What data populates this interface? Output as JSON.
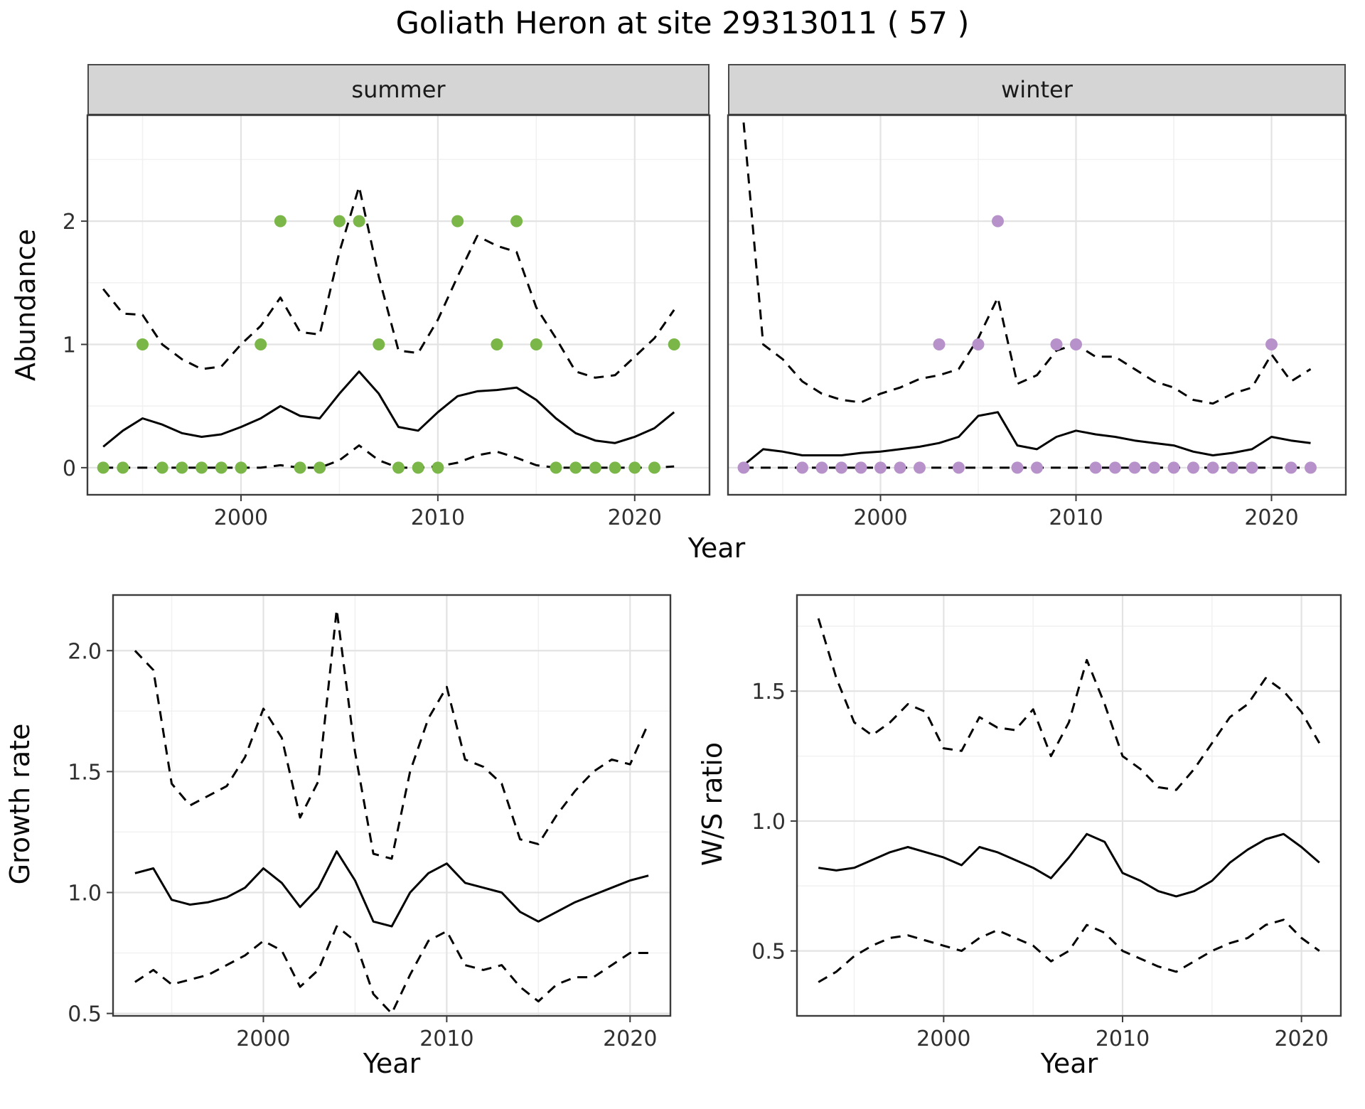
{
  "title": "Goliath Heron at site 29313011 ( 57 )",
  "facets": [
    "summer",
    "winter"
  ],
  "labels": {
    "x": "Year",
    "abundance": "Abundance",
    "growth": "Growth rate",
    "ws": "W/S ratio"
  },
  "colors": {
    "summer_points": "#7ab648",
    "winter_points": "#b791c9",
    "line": "#000000",
    "strip_bg": "#d5d5d5",
    "grid_major": "#e3e3e3",
    "grid_minor": "#f1f1f1",
    "panel_border": "#3c3c3c"
  },
  "chart_data": [
    {
      "id": "summer",
      "type": "line",
      "title": "summer",
      "xlabel": "Year",
      "ylabel": "Abundance",
      "xlim": [
        1992.2,
        2023.8
      ],
      "ylim": [
        -0.22,
        2.86
      ],
      "xticks": [
        2000,
        2010,
        2020
      ],
      "xtick_labels": [
        "2000",
        "2010",
        "2020"
      ],
      "yticks": [
        0,
        1,
        2
      ],
      "ytick_labels": [
        "0",
        "1",
        "2"
      ],
      "series": [
        {
          "name": "mean",
          "style": "solid",
          "x": [
            1993,
            1994,
            1995,
            1996,
            1997,
            1998,
            1999,
            2000,
            2001,
            2002,
            2003,
            2004,
            2005,
            2006,
            2007,
            2008,
            2009,
            2010,
            2011,
            2012,
            2013,
            2014,
            2015,
            2016,
            2017,
            2018,
            2019,
            2020,
            2021,
            2022
          ],
          "y": [
            0.17,
            0.3,
            0.4,
            0.35,
            0.28,
            0.25,
            0.27,
            0.33,
            0.4,
            0.5,
            0.42,
            0.4,
            0.6,
            0.78,
            0.6,
            0.33,
            0.3,
            0.45,
            0.58,
            0.62,
            0.63,
            0.65,
            0.55,
            0.4,
            0.28,
            0.22,
            0.2,
            0.25,
            0.32,
            0.45
          ]
        },
        {
          "name": "upper_ci",
          "style": "dashed",
          "x": [
            1993,
            1994,
            1995,
            1996,
            1997,
            1998,
            1999,
            2000,
            2001,
            2002,
            2003,
            2004,
            2005,
            2006,
            2007,
            2008,
            2009,
            2010,
            2011,
            2012,
            2013,
            2014,
            2015,
            2016,
            2017,
            2018,
            2019,
            2020,
            2021,
            2022
          ],
          "y": [
            1.45,
            1.25,
            1.24,
            1.0,
            0.88,
            0.8,
            0.82,
            1.0,
            1.15,
            1.38,
            1.1,
            1.08,
            1.75,
            2.28,
            1.55,
            0.95,
            0.93,
            1.2,
            1.55,
            1.88,
            1.8,
            1.75,
            1.3,
            1.05,
            0.78,
            0.73,
            0.75,
            0.9,
            1.05,
            1.28
          ]
        },
        {
          "name": "lower_ci",
          "style": "dashed",
          "x": [
            1993,
            1994,
            1995,
            1996,
            1997,
            1998,
            1999,
            2000,
            2001,
            2002,
            2003,
            2004,
            2005,
            2006,
            2007,
            2008,
            2009,
            2010,
            2011,
            2012,
            2013,
            2014,
            2015,
            2016,
            2017,
            2018,
            2019,
            2020,
            2021,
            2022
          ],
          "y": [
            0,
            0,
            0,
            0,
            0,
            0,
            0,
            0,
            0,
            0.02,
            0,
            0,
            0.06,
            0.18,
            0.06,
            0,
            0,
            0.01,
            0.04,
            0.1,
            0.13,
            0.08,
            0.02,
            0,
            0,
            0,
            0,
            0,
            0,
            0.01
          ]
        }
      ],
      "points": {
        "name": "summer-observed-counts",
        "color": "#7ab648",
        "x": [
          1993,
          1994,
          1996,
          1997,
          1998,
          1999,
          2000,
          2003,
          2004,
          2008,
          2009,
          2010,
          2016,
          2017,
          2018,
          2019,
          2020,
          2021,
          1995,
          2001,
          2007,
          2013,
          2015,
          2022,
          2002,
          2005,
          2006,
          2011,
          2014
        ],
        "y": [
          0,
          0,
          0,
          0,
          0,
          0,
          0,
          0,
          0,
          0,
          0,
          0,
          0,
          0,
          0,
          0,
          0,
          0,
          1,
          1,
          1,
          1,
          1,
          1,
          2,
          2,
          2,
          2,
          2
        ]
      }
    },
    {
      "id": "winter",
      "type": "line",
      "title": "winter",
      "xlabel": "Year",
      "ylabel": "Abundance",
      "xlim": [
        1992.2,
        2023.8
      ],
      "ylim": [
        -0.22,
        2.86
      ],
      "xticks": [
        2000,
        2010,
        2020
      ],
      "xtick_labels": [
        "2000",
        "2010",
        "2020"
      ],
      "yticks": [
        0,
        1,
        2
      ],
      "ytick_labels": [
        "0",
        "1",
        "2"
      ],
      "series": [
        {
          "name": "mean",
          "style": "solid",
          "x": [
            1993,
            1994,
            1995,
            1996,
            1997,
            1998,
            1999,
            2000,
            2001,
            2002,
            2003,
            2004,
            2005,
            2006,
            2007,
            2008,
            2009,
            2010,
            2011,
            2012,
            2013,
            2014,
            2015,
            2016,
            2017,
            2018,
            2019,
            2020,
            2021,
            2022
          ],
          "y": [
            0.02,
            0.15,
            0.13,
            0.1,
            0.1,
            0.1,
            0.12,
            0.13,
            0.15,
            0.17,
            0.2,
            0.25,
            0.42,
            0.45,
            0.18,
            0.15,
            0.25,
            0.3,
            0.27,
            0.25,
            0.22,
            0.2,
            0.18,
            0.13,
            0.1,
            0.12,
            0.15,
            0.25,
            0.22,
            0.2
          ]
        },
        {
          "name": "upper_ci",
          "style": "dashed",
          "x": [
            1993,
            1994,
            1995,
            1996,
            1997,
            1998,
            1999,
            2000,
            2001,
            2002,
            2003,
            2004,
            2005,
            2006,
            2007,
            2008,
            2009,
            2010,
            2011,
            2012,
            2013,
            2014,
            2015,
            2016,
            2017,
            2018,
            2019,
            2020,
            2021,
            2022
          ],
          "y": [
            2.8,
            1.0,
            0.88,
            0.7,
            0.6,
            0.55,
            0.53,
            0.6,
            0.65,
            0.72,
            0.75,
            0.8,
            1.05,
            1.38,
            0.68,
            0.75,
            0.95,
            1.0,
            0.9,
            0.9,
            0.8,
            0.7,
            0.65,
            0.55,
            0.52,
            0.6,
            0.65,
            0.92,
            0.7,
            0.8
          ]
        },
        {
          "name": "lower_ci",
          "style": "dashed",
          "x": [
            1993,
            1994,
            1995,
            1996,
            1997,
            1998,
            1999,
            2000,
            2001,
            2002,
            2003,
            2004,
            2005,
            2006,
            2007,
            2008,
            2009,
            2010,
            2011,
            2012,
            2013,
            2014,
            2015,
            2016,
            2017,
            2018,
            2019,
            2020,
            2021,
            2022
          ],
          "y": [
            0,
            0,
            0,
            0,
            0,
            0,
            0,
            0,
            0,
            0,
            0,
            0,
            0,
            0,
            0,
            0,
            0,
            0,
            0,
            0,
            0,
            0,
            0,
            0,
            0,
            0,
            0,
            0,
            0,
            0
          ]
        }
      ],
      "points": {
        "name": "winter-observed-counts",
        "color": "#b791c9",
        "x": [
          1993,
          1996,
          1997,
          1998,
          1999,
          2000,
          2001,
          2002,
          2004,
          2007,
          2008,
          2011,
          2012,
          2013,
          2014,
          2015,
          2016,
          2017,
          2018,
          2019,
          2021,
          2022,
          2003,
          2005,
          2009,
          2010,
          2020,
          2006
        ],
        "y": [
          0,
          0,
          0,
          0,
          0,
          0,
          0,
          0,
          0,
          0,
          0,
          0,
          0,
          0,
          0,
          0,
          0,
          0,
          0,
          0,
          0,
          0,
          1,
          1,
          1,
          1,
          1,
          2
        ]
      }
    },
    {
      "id": "growth",
      "type": "line",
      "title": "Growth rate",
      "xlabel": "Year",
      "ylabel": "Growth rate",
      "xlim": [
        1991.8,
        2022.2
      ],
      "ylim": [
        0.49,
        2.23
      ],
      "xticks": [
        2000,
        2010,
        2020
      ],
      "xtick_labels": [
        "2000",
        "2010",
        "2020"
      ],
      "yticks": [
        0.5,
        1.0,
        1.5,
        2.0
      ],
      "ytick_labels": [
        "0.5",
        "1.0",
        "1.5",
        "2.0"
      ],
      "series": [
        {
          "name": "mean",
          "style": "solid",
          "x": [
            1993,
            1994,
            1995,
            1996,
            1997,
            1998,
            1999,
            2000,
            2001,
            2002,
            2003,
            2004,
            2005,
            2006,
            2007,
            2008,
            2009,
            2010,
            2011,
            2012,
            2013,
            2014,
            2015,
            2016,
            2017,
            2018,
            2019,
            2020,
            2021
          ],
          "y": [
            1.08,
            1.1,
            0.97,
            0.95,
            0.96,
            0.98,
            1.02,
            1.1,
            1.04,
            0.94,
            1.02,
            1.17,
            1.05,
            0.88,
            0.86,
            1.0,
            1.08,
            1.12,
            1.04,
            1.02,
            1.0,
            0.92,
            0.88,
            0.92,
            0.96,
            0.99,
            1.02,
            1.05,
            1.07
          ]
        },
        {
          "name": "upper_ci",
          "style": "dashed",
          "x": [
            1993,
            1994,
            1995,
            1996,
            1997,
            1998,
            1999,
            2000,
            2001,
            2002,
            2003,
            2004,
            2005,
            2006,
            2007,
            2008,
            2009,
            2010,
            2011,
            2012,
            2013,
            2014,
            2015,
            2016,
            2017,
            2018,
            2019,
            2020,
            2021
          ],
          "y": [
            2.0,
            1.92,
            1.45,
            1.36,
            1.4,
            1.44,
            1.56,
            1.76,
            1.64,
            1.31,
            1.46,
            2.17,
            1.58,
            1.16,
            1.14,
            1.5,
            1.72,
            1.85,
            1.55,
            1.52,
            1.45,
            1.22,
            1.2,
            1.32,
            1.42,
            1.5,
            1.55,
            1.53,
            1.7
          ]
        },
        {
          "name": "lower_ci",
          "style": "dashed",
          "x": [
            1993,
            1994,
            1995,
            1996,
            1997,
            1998,
            1999,
            2000,
            2001,
            2002,
            2003,
            2004,
            2005,
            2006,
            2007,
            2008,
            2009,
            2010,
            2011,
            2012,
            2013,
            2014,
            2015,
            2016,
            2017,
            2018,
            2019,
            2020,
            2021
          ],
          "y": [
            0.63,
            0.68,
            0.62,
            0.64,
            0.66,
            0.7,
            0.74,
            0.8,
            0.76,
            0.61,
            0.68,
            0.86,
            0.8,
            0.58,
            0.5,
            0.66,
            0.8,
            0.84,
            0.7,
            0.68,
            0.7,
            0.61,
            0.55,
            0.62,
            0.65,
            0.65,
            0.7,
            0.75,
            0.75
          ]
        }
      ]
    },
    {
      "id": "ws",
      "type": "line",
      "title": "W/S ratio",
      "xlabel": "Year",
      "ylabel": "W/S ratio",
      "xlim": [
        1991.8,
        2022.2
      ],
      "ylim": [
        0.25,
        1.87
      ],
      "xticks": [
        2000,
        2010,
        2020
      ],
      "xtick_labels": [
        "2000",
        "2010",
        "2020"
      ],
      "yticks": [
        0.5,
        1.0,
        1.5
      ],
      "ytick_labels": [
        "0.5",
        "1.0",
        "1.5"
      ],
      "series": [
        {
          "name": "mean",
          "style": "solid",
          "x": [
            1993,
            1994,
            1995,
            1996,
            1997,
            1998,
            1999,
            2000,
            2001,
            2002,
            2003,
            2004,
            2005,
            2006,
            2007,
            2008,
            2009,
            2010,
            2011,
            2012,
            2013,
            2014,
            2015,
            2016,
            2017,
            2018,
            2019,
            2020,
            2021
          ],
          "y": [
            0.82,
            0.81,
            0.82,
            0.85,
            0.88,
            0.9,
            0.88,
            0.86,
            0.83,
            0.9,
            0.88,
            0.85,
            0.82,
            0.78,
            0.86,
            0.95,
            0.92,
            0.8,
            0.77,
            0.73,
            0.71,
            0.73,
            0.77,
            0.84,
            0.89,
            0.93,
            0.95,
            0.9,
            0.84
          ]
        },
        {
          "name": "upper_ci",
          "style": "dashed",
          "x": [
            1993,
            1994,
            1995,
            1996,
            1997,
            1998,
            1999,
            2000,
            2001,
            2002,
            2003,
            2004,
            2005,
            2006,
            2007,
            2008,
            2009,
            2010,
            2011,
            2012,
            2013,
            2014,
            2015,
            2016,
            2017,
            2018,
            2019,
            2020,
            2021
          ],
          "y": [
            1.78,
            1.55,
            1.38,
            1.33,
            1.38,
            1.45,
            1.42,
            1.28,
            1.27,
            1.4,
            1.36,
            1.35,
            1.43,
            1.25,
            1.38,
            1.62,
            1.45,
            1.25,
            1.2,
            1.13,
            1.12,
            1.2,
            1.3,
            1.4,
            1.45,
            1.55,
            1.5,
            1.42,
            1.3
          ]
        },
        {
          "name": "lower_ci",
          "style": "dashed",
          "x": [
            1993,
            1994,
            1995,
            1996,
            1997,
            1998,
            1999,
            2000,
            2001,
            2002,
            2003,
            2004,
            2005,
            2006,
            2007,
            2008,
            2009,
            2010,
            2011,
            2012,
            2013,
            2014,
            2015,
            2016,
            2017,
            2018,
            2019,
            2020,
            2021
          ],
          "y": [
            0.38,
            0.42,
            0.48,
            0.52,
            0.55,
            0.56,
            0.54,
            0.52,
            0.5,
            0.55,
            0.58,
            0.55,
            0.52,
            0.46,
            0.5,
            0.6,
            0.57,
            0.5,
            0.47,
            0.44,
            0.42,
            0.46,
            0.5,
            0.53,
            0.55,
            0.6,
            0.62,
            0.55,
            0.5
          ]
        }
      ]
    }
  ]
}
